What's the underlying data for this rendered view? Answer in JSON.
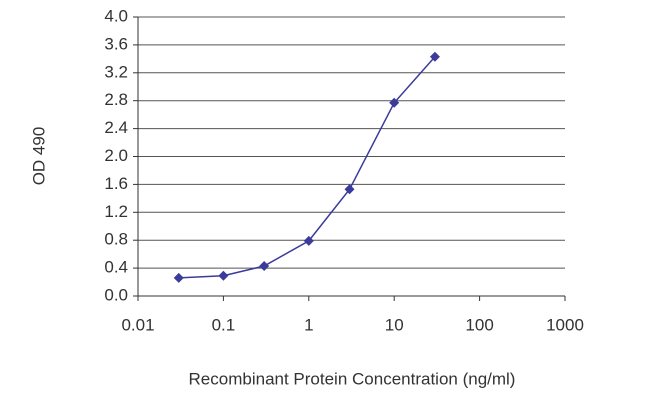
{
  "chart_data": {
    "type": "line",
    "x_label": "Recombinant Protein Concentration (ng/ml)",
    "y_label": "OD 490",
    "x": [
      0.03,
      0.1,
      0.3,
      1,
      3,
      10,
      30
    ],
    "series": [
      {
        "color": "#3b3b9c",
        "values": [
          0.26,
          0.29,
          0.43,
          0.79,
          1.53,
          2.77,
          3.43
        ]
      }
    ],
    "xscale": "log",
    "xlim": [
      0.01,
      1000
    ],
    "xticks": [
      0.01,
      0.1,
      1,
      10,
      100,
      1000
    ],
    "ylim": [
      0,
      4
    ],
    "yticks": [
      {
        "value": 0,
        "label": "0.0"
      },
      0.4,
      0.8,
      1.2,
      1.6,
      {
        "value": 2,
        "label": "2.0"
      },
      2.4,
      2.8,
      3.2,
      3.6,
      {
        "value": 4,
        "label": "4.0"
      }
    ],
    "grid": true
  }
}
